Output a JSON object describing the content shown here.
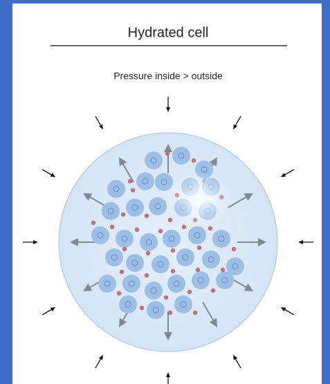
{
  "title": "Hydrated cell",
  "subtitle": "Pressure inside > outside"
}
